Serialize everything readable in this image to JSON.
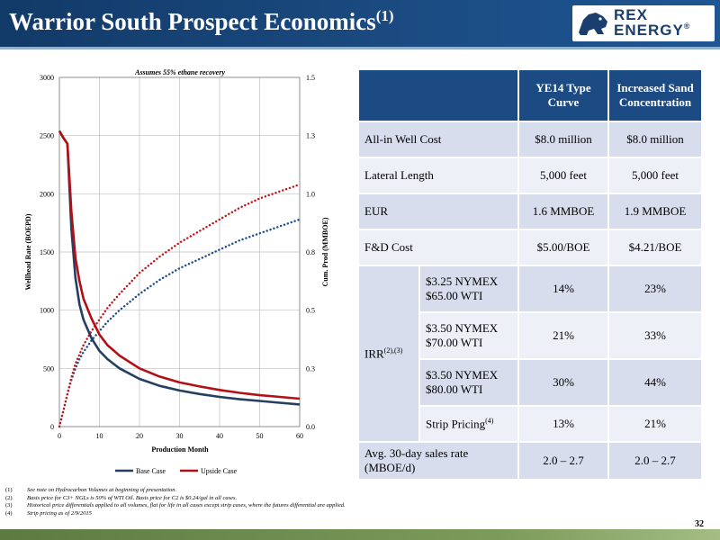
{
  "header": {
    "title": "Warrior South Prospect Economics",
    "title_sup": "(1)",
    "logo_line1": "REX",
    "logo_line2": "ENERGY",
    "logo_mark": "®"
  },
  "chart_data": {
    "type": "line",
    "annotation": "Assumes 55% ethane recovery",
    "xlabel": "Production Month",
    "ylabel": "Wellhead Rate (BOEPD)",
    "y2label": "Cum. Prod (MMBOE)",
    "xlim": [
      0,
      60
    ],
    "ylim": [
      0,
      3000
    ],
    "y2lim": [
      0,
      1.5
    ],
    "x_ticks": [
      0,
      10,
      20,
      30,
      40,
      50,
      60
    ],
    "y_ticks": [
      0,
      500,
      1000,
      1500,
      2000,
      2500,
      3000
    ],
    "y2_ticks": [
      "0.0",
      "0.3",
      "0.5",
      "0.8",
      "1.0",
      "1.3",
      "1.5"
    ],
    "grid": true,
    "legend_position": "bottom",
    "legend": [
      "Base Case",
      "Upside Case"
    ],
    "colors": {
      "base": "#243f60",
      "upside": "#b11016",
      "base_cum": "#1f4e8c",
      "upside_cum": "#c0161c"
    },
    "x": [
      0,
      1,
      2,
      3,
      4,
      5,
      6,
      8,
      10,
      12,
      15,
      20,
      25,
      30,
      35,
      40,
      45,
      50,
      55,
      60
    ],
    "series": [
      {
        "name": "Base Case",
        "axis": "left",
        "style": "solid",
        "values": [
          2540,
          2480,
          2430,
          1700,
          1280,
          1050,
          920,
          760,
          650,
          580,
          500,
          410,
          350,
          310,
          280,
          255,
          235,
          220,
          205,
          190
        ]
      },
      {
        "name": "Upside Case",
        "axis": "left",
        "style": "solid",
        "values": [
          2540,
          2480,
          2430,
          1850,
          1450,
          1250,
          1100,
          930,
          790,
          700,
          610,
          500,
          430,
          380,
          345,
          315,
          290,
          270,
          255,
          240
        ]
      },
      {
        "axis": "right",
        "style": "dotted",
        "values": [
          0.0,
          0.07,
          0.14,
          0.2,
          0.25,
          0.29,
          0.32,
          0.37,
          0.41,
          0.45,
          0.5,
          0.57,
          0.63,
          0.68,
          0.72,
          0.76,
          0.8,
          0.83,
          0.86,
          0.89
        ]
      },
      {
        "axis": "right",
        "style": "dotted",
        "values": [
          0.0,
          0.07,
          0.14,
          0.21,
          0.27,
          0.31,
          0.35,
          0.41,
          0.46,
          0.51,
          0.57,
          0.66,
          0.73,
          0.79,
          0.84,
          0.89,
          0.94,
          0.98,
          1.01,
          1.04
        ]
      }
    ]
  },
  "table": {
    "col_headers": [
      "YE14 Type Curve",
      "Increased Sand Concentration"
    ],
    "rows": [
      {
        "label": "All-in Well Cost",
        "v1": "$8.0 million",
        "v2": "$8.0 million"
      },
      {
        "label": "Lateral Length",
        "v1": "5,000 feet",
        "v2": "5,000 feet"
      },
      {
        "label": "EUR",
        "v1": "1.6 MMBOE",
        "v2": "1.9 MMBOE"
      },
      {
        "label": "F&D Cost",
        "v1": "$5.00/BOE",
        "v2": "$4.21/BOE"
      }
    ],
    "irr_label": "IRR",
    "irr_sup": "(2),(3)",
    "irr_rows": [
      {
        "line1": "$3.25 NYMEX",
        "line2": "$65.00 WTI",
        "v1": "14%",
        "v2": "23%"
      },
      {
        "line1": "$3.50 NYMEX",
        "line2": "$70.00 WTI",
        "v1": "21%",
        "v2": "33%"
      },
      {
        "line1": "$3.50 NYMEX",
        "line2": "$80.00 WTI",
        "v1": "30%",
        "v2": "44%"
      },
      {
        "line1": "Strip Pricing",
        "sup": "(4)",
        "v1": "13%",
        "v2": "21%"
      }
    ],
    "last_row": {
      "line1": "Avg. 30-day sales rate",
      "line2": "(MBOE/d)",
      "v1": "2.0 – 2.7",
      "v2": "2.0 – 2.7"
    }
  },
  "footnotes": [
    {
      "num": "(1)",
      "text": "See note on Hydrocarbon Volumes at beginning of presentation."
    },
    {
      "num": "(2)",
      "text": "Basis price for C3+ NGLs is 50% of WTI Oil. Basis price for C2 is $0.24/gal in all cases."
    },
    {
      "num": "(3)",
      "text": "Historical price differentials applied to all volumes, flat for life in all cases except strip cases, where the futures differential are applied."
    },
    {
      "num": "(4)",
      "text": "Strip pricing as of 2/9/2015"
    }
  ],
  "page_number": "32"
}
